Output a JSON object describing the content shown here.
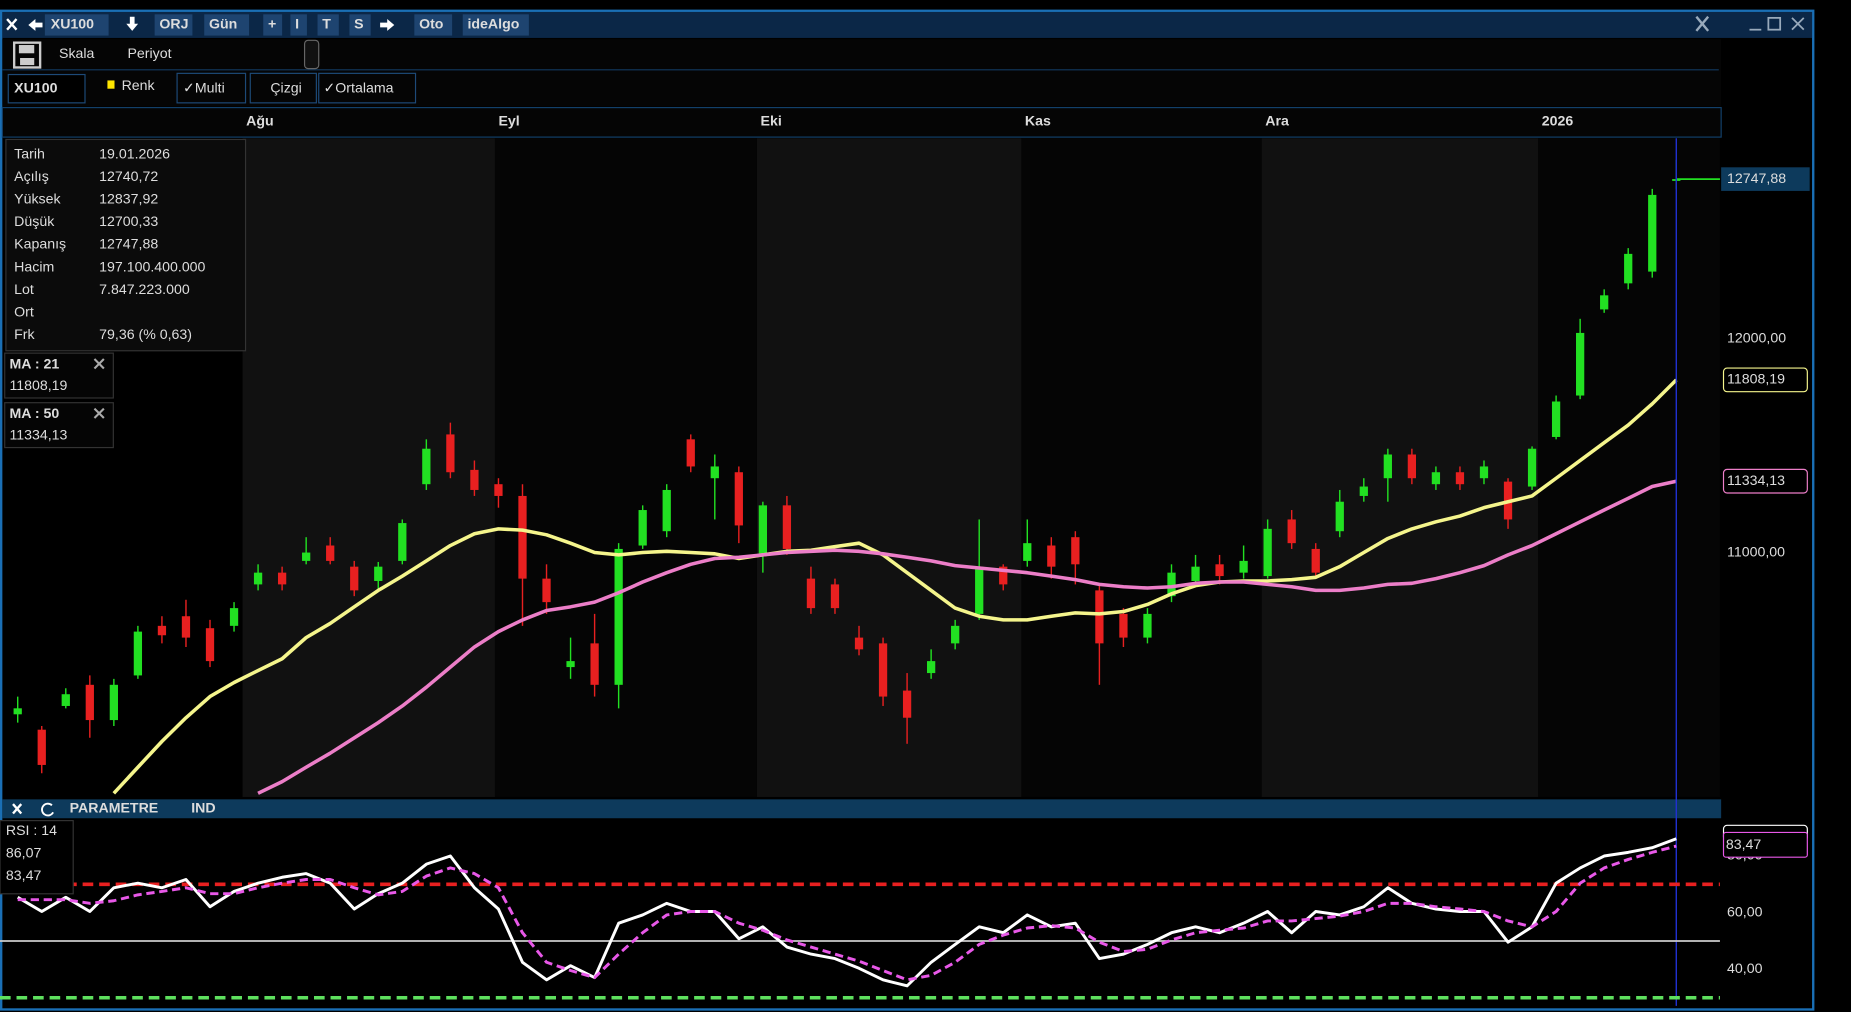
{
  "toolbar": {
    "symbol": "XU100",
    "items": [
      "ORJ",
      "Gün",
      "+",
      "I",
      "T",
      "S",
      "Oto",
      "ideAlgo"
    ]
  },
  "options": {
    "scale": "Skala",
    "period": "Periyot",
    "symbol": "XU100",
    "color": "Renk",
    "toggles": [
      "✓Multi",
      "Çizgi",
      "✓Ortalama"
    ]
  },
  "info": {
    "rows": [
      {
        "label": "Tarih",
        "value": "19.01.2026",
        "color": "#ffffff"
      },
      {
        "label": "Açılış",
        "value": "12740,72",
        "color": "#ffffff"
      },
      {
        "label": "Yüksek",
        "value": "12837,92",
        "color": "#2ee82e"
      },
      {
        "label": "Düşük",
        "value": "12700,33",
        "color": "#ff2a2a"
      },
      {
        "label": "Kapanış",
        "value": "12747,88",
        "color": "#ffffff"
      },
      {
        "label": "Hacim",
        "value": "197.100.400.000",
        "color": "#ffffff"
      },
      {
        "label": "Lot",
        "value": "7.847.223.000",
        "color": "#ffffff"
      },
      {
        "label": "Ort"
      },
      {
        "label": "Frk",
        "value": "79,36 (% 0,63)",
        "color": "#2ee82e"
      }
    ]
  },
  "indicator_panel": {
    "buttons": [
      "PARAMETRE",
      "IND"
    ]
  },
  "chart_data": [
    {
      "type": "candlestick",
      "up_color": "#22e022",
      "down_color": "#e82020",
      "x_ticks": [
        {
          "value": 9.6,
          "label": "Ağu"
        },
        {
          "value": 20.1,
          "label": "Eyl"
        },
        {
          "value": 31,
          "label": "Eki"
        },
        {
          "value": 42,
          "label": "Kas"
        },
        {
          "value": 52,
          "label": "Ara"
        },
        {
          "value": 63.5,
          "label": "2026"
        }
      ],
      "ylim": [
        9856,
        12939
      ],
      "yticks": [
        {
          "value": 11000,
          "label": "11000,00"
        },
        {
          "value": 12000,
          "label": "12000,00"
        }
      ],
      "last_price": {
        "value": 12747.88,
        "label": "12747,88"
      },
      "ohlc": [
        [
          10243,
          10326,
          10204,
          10271
        ],
        [
          10171,
          10188,
          9967,
          10006
        ],
        [
          10282,
          10365,
          10271,
          10337
        ],
        [
          10381,
          10425,
          10133,
          10216
        ],
        [
          10216,
          10409,
          10188,
          10381
        ],
        [
          10425,
          10657,
          10409,
          10630
        ],
        [
          10657,
          10702,
          10575,
          10613
        ],
        [
          10702,
          10779,
          10558,
          10602
        ],
        [
          10646,
          10685,
          10464,
          10492
        ],
        [
          10657,
          10768,
          10630,
          10740
        ],
        [
          10851,
          10945,
          10823,
          10906
        ],
        [
          10906,
          10934,
          10823,
          10851
        ],
        [
          10961,
          11072,
          10945,
          11000
        ],
        [
          11033,
          11072,
          10945,
          10961
        ],
        [
          10934,
          10961,
          10796,
          10823
        ],
        [
          10867,
          10956,
          10823,
          10934
        ],
        [
          10961,
          11155,
          10945,
          11138
        ],
        [
          11320,
          11530,
          11293,
          11486
        ],
        [
          11553,
          11608,
          11348,
          11376
        ],
        [
          11387,
          11431,
          11265,
          11293
        ],
        [
          11320,
          11348,
          11210,
          11265
        ],
        [
          11265,
          11320,
          10657,
          10878
        ],
        [
          10878,
          10945,
          10713,
          10768
        ],
        [
          10464,
          10602,
          10409,
          10492
        ],
        [
          10575,
          10713,
          10326,
          10381
        ],
        [
          10381,
          11044,
          10271,
          11017
        ],
        [
          11033,
          11221,
          11017,
          11199
        ],
        [
          11100,
          11320,
          11072,
          11293
        ],
        [
          11530,
          11553,
          11376,
          11403
        ],
        [
          11348,
          11459,
          11155,
          11403
        ],
        [
          11376,
          11403,
          11044,
          11127
        ],
        [
          10989,
          11238,
          10906,
          11221
        ],
        [
          11221,
          11265,
          10989,
          11017
        ],
        [
          10878,
          10934,
          10713,
          10740
        ],
        [
          10851,
          10878,
          10713,
          10740
        ],
        [
          10602,
          10657,
          10519,
          10547
        ],
        [
          10575,
          10602,
          10282,
          10326
        ],
        [
          10354,
          10436,
          10105,
          10227
        ],
        [
          10436,
          10547,
          10409,
          10492
        ],
        [
          10575,
          10685,
          10547,
          10657
        ],
        [
          10713,
          11155,
          10685,
          10934
        ],
        [
          10934,
          10945,
          10823,
          10851
        ],
        [
          10961,
          11155,
          10934,
          11044
        ],
        [
          11033,
          11072,
          10878,
          10934
        ],
        [
          11072,
          11100,
          10851,
          10945
        ],
        [
          10823,
          10851,
          10381,
          10575
        ],
        [
          10713,
          10740,
          10558,
          10602
        ],
        [
          10602,
          10740,
          10575,
          10713
        ],
        [
          10796,
          10945,
          10768,
          10906
        ],
        [
          10867,
          10989,
          10851,
          10934
        ],
        [
          10945,
          10989,
          10851,
          10890
        ],
        [
          10906,
          11033,
          10878,
          10961
        ],
        [
          10890,
          11155,
          10878,
          11111
        ],
        [
          11155,
          11199,
          11017,
          11044
        ],
        [
          11017,
          11044,
          10878,
          10906
        ],
        [
          11100,
          11293,
          11072,
          11238
        ],
        [
          11265,
          11348,
          11238,
          11309
        ],
        [
          11348,
          11486,
          11238,
          11459
        ],
        [
          11459,
          11486,
          11320,
          11348
        ],
        [
          11320,
          11403,
          11293,
          11376
        ],
        [
          11376,
          11403,
          11293,
          11320
        ],
        [
          11348,
          11431,
          11320,
          11403
        ],
        [
          11332,
          11348,
          11111,
          11155
        ],
        [
          11309,
          11497,
          11293,
          11486
        ],
        [
          11541,
          11735,
          11530,
          11707
        ],
        [
          11735,
          12094,
          11718,
          12028
        ],
        [
          12138,
          12232,
          12122,
          12204
        ],
        [
          12260,
          12425,
          12232,
          12398
        ],
        [
          12315,
          12702,
          12287,
          12674
        ],
        [
          12740.72,
          12837.92,
          12700.33,
          12747.88
        ]
      ],
      "series": [
        {
          "name": "MA : 21",
          "color": "#f5f58c",
          "last_label": "11808,19",
          "values": [
            null,
            null,
            null,
            null,
            9873,
            9995,
            10116,
            10227,
            10326,
            10392,
            10448,
            10503,
            10602,
            10668,
            10746,
            10823,
            10890,
            10961,
            11033,
            11088,
            11111,
            11105,
            11083,
            11044,
            11000,
            10989,
            11000,
            11006,
            11000,
            10994,
            10972,
            10989,
            11006,
            11011,
            11028,
            11044,
            10989,
            10906,
            10823,
            10740,
            10702,
            10685,
            10685,
            10702,
            10718,
            10713,
            10724,
            10757,
            10807,
            10845,
            10862,
            10867,
            10867,
            10873,
            10884,
            10934,
            11000,
            11066,
            11111,
            11144,
            11171,
            11210,
            11238,
            11265,
            11348,
            11431,
            11514,
            11597,
            11696,
            11808.19
          ]
        },
        {
          "name": "MA : 50",
          "color": "#ec7ec8",
          "last_label": "11334,13",
          "values": [
            null,
            null,
            null,
            null,
            null,
            null,
            null,
            null,
            null,
            null,
            9873,
            9928,
            9995,
            10061,
            10133,
            10204,
            10282,
            10370,
            10464,
            10558,
            10630,
            10685,
            10729,
            10746,
            10768,
            10812,
            10862,
            10906,
            10945,
            10972,
            10978,
            10989,
            11000,
            11006,
            11011,
            11006,
            10994,
            10978,
            10961,
            10939,
            10928,
            10917,
            10906,
            10890,
            10873,
            10851,
            10840,
            10834,
            10840,
            10856,
            10862,
            10862,
            10851,
            10840,
            10823,
            10823,
            10834,
            10851,
            10856,
            10878,
            10906,
            10939,
            10989,
            11033,
            11088,
            11144,
            11199,
            11254,
            11309,
            11334.13
          ]
        }
      ]
    },
    {
      "type": "line",
      "title": "RSI : 14",
      "ylim": [
        27.1,
        92.9
      ],
      "yticks": [
        {
          "value": 40,
          "label": "40,00"
        },
        {
          "value": 60,
          "label": "60,00"
        },
        {
          "value": 80,
          "label": "80,00"
        }
      ],
      "levels": [
        {
          "value": 70,
          "color": "#e82020",
          "dashed": true
        },
        {
          "value": 50,
          "color": "#cccccc",
          "dashed": false
        },
        {
          "value": 30,
          "color": "#5ee05e",
          "dashed": true
        }
      ],
      "series": [
        {
          "color": "#ffffff",
          "dashed": false,
          "last_label": "86,07",
          "values": [
            65.4,
            60.4,
            65.4,
            60.4,
            68.8,
            70.4,
            68.8,
            71.7,
            62.1,
            67.5,
            70.4,
            72.5,
            73.8,
            70.4,
            61.3,
            66.7,
            70.4,
            77.1,
            80,
            68.8,
            61.3,
            42.5,
            36.3,
            41.3,
            37.1,
            56.3,
            59.2,
            63.3,
            60.4,
            60.4,
            50.8,
            55,
            47.9,
            45.4,
            43.8,
            40.4,
            36.3,
            34.2,
            42.5,
            48.8,
            55,
            52.9,
            59.2,
            55,
            56.3,
            43.8,
            45.4,
            48.8,
            52.9,
            55,
            52.9,
            56.3,
            60.4,
            52.9,
            60.4,
            59.2,
            62.1,
            68.8,
            63.3,
            61.3,
            60.4,
            60.4,
            49.6,
            55,
            70.4,
            75.8,
            80,
            81.3,
            82.9,
            86.07
          ]
        },
        {
          "color": "#e858e8",
          "dashed": true,
          "last_label": "83,47",
          "values": [
            64.6,
            64.6,
            64.6,
            63.3,
            64.2,
            66.3,
            67.5,
            68.8,
            66.7,
            66.7,
            68.8,
            70.4,
            71.7,
            71.7,
            68.8,
            66.3,
            67.5,
            72.9,
            75.8,
            73.8,
            68.8,
            52.9,
            42.5,
            39.6,
            37.1,
            45.4,
            52.9,
            59.2,
            60.4,
            60.4,
            56.3,
            53.8,
            50.4,
            47.9,
            45.4,
            42.9,
            39.6,
            36.3,
            37.9,
            42.5,
            48.8,
            52.1,
            54.6,
            55.4,
            54.6,
            49.6,
            46.3,
            47.1,
            50.4,
            52.9,
            53.8,
            54.6,
            57.1,
            57.1,
            57.9,
            58.8,
            60.4,
            63.3,
            63.3,
            62.1,
            61.3,
            60.4,
            57.1,
            55,
            60.4,
            70.4,
            75.8,
            78.8,
            81.3,
            83.47
          ]
        }
      ]
    }
  ]
}
